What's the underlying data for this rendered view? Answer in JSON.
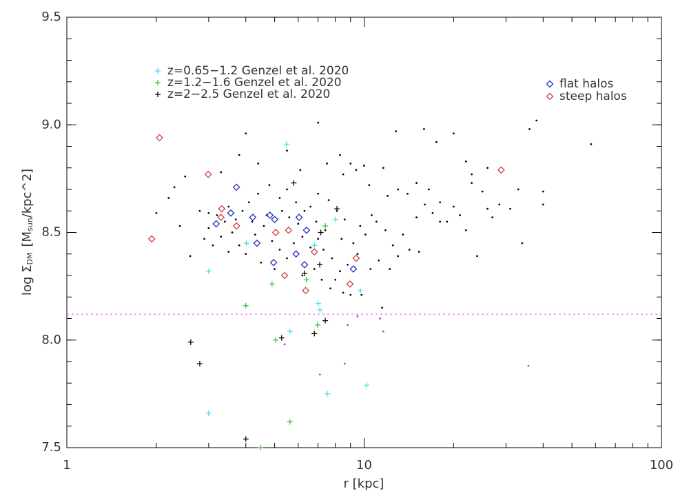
{
  "chart_data": {
    "type": "scatter",
    "xlabel": "r [kpc]",
    "ylabel": [
      "log Σ",
      "DM",
      "[M",
      "sun",
      "/kpc^2]"
    ],
    "xscale": "log",
    "xlim": [
      1,
      100
    ],
    "xticks": [
      1,
      10,
      100
    ],
    "ylim": [
      7.5,
      9.5
    ],
    "yticks": [
      7.5,
      {
        "value": 8.0,
        "label": "8.0"
      },
      8.5,
      {
        "value": 9.0,
        "label": "9.0"
      },
      9.5
    ],
    "hline": {
      "value": 8.12,
      "color": "#ff80ff"
    },
    "series": [
      {
        "name": "z=0.65−1.2 Genzel et al. 2020",
        "color": "#40e0f0",
        "marker": "cross",
        "x": [
          3.0,
          5.48,
          3.0,
          7.52,
          10.2,
          5.63,
          7.01,
          8.01,
          6.8,
          9.71,
          4.02,
          7.1
        ],
        "values": [
          8.32,
          8.91,
          7.66,
          7.75,
          7.79,
          8.04,
          8.17,
          8.56,
          8.44,
          8.23,
          8.45,
          8.14
        ]
      },
      {
        "name": "z=1.2−1.6 Genzel et al. 2020",
        "color": "#30c030",
        "marker": "cross",
        "x": [
          4.0,
          4.9,
          5.04,
          5.63,
          4.48,
          6.98,
          6.4,
          7.4
        ],
        "values": [
          8.16,
          8.26,
          8.0,
          7.62,
          7.5,
          8.07,
          8.28,
          8.53
        ]
      },
      {
        "name": "z=2−2.5 Genzel et al. 2020",
        "color": "#000000",
        "marker": "cross",
        "x": [
          2.61,
          2.8,
          4.0,
          5.28,
          6.8,
          7.4,
          7.09,
          6.3,
          8.1,
          5.8,
          7.15
        ],
        "values": [
          7.99,
          7.89,
          7.54,
          8.01,
          8.03,
          8.09,
          8.35,
          8.31,
          8.61,
          8.73,
          8.5
        ]
      },
      {
        "color": "#000000",
        "marker": "dot",
        "x": [
          7.0,
          12.8,
          15.9,
          20,
          38,
          36,
          58,
          17.5,
          4.0,
          5.5,
          3.8,
          8.3,
          10,
          9.0,
          11.6,
          22,
          26,
          23,
          23,
          33,
          40,
          40,
          31,
          26,
          2.3,
          2.2,
          2.5,
          3.3,
          4.4,
          6.1,
          7.5,
          8.5,
          9.4,
          10.4,
          12,
          13,
          14,
          15,
          16.5,
          18,
          20,
          22,
          24,
          34,
          18,
          17,
          16,
          15,
          13.5,
          12.5,
          14.2,
          15.3,
          13,
          11.8,
          11,
          10.6,
          10.1,
          9.7,
          9.2,
          9.5,
          8.8,
          8.3,
          8.0,
          7.8,
          7.3,
          8.4,
          8.6,
          8.1,
          7.6,
          7.0,
          6.6,
          6.9,
          6.3,
          5.9,
          5.5,
          5.2,
          4.8,
          4.4,
          4.1,
          3.9,
          3.5,
          3.2,
          3.0,
          2.9,
          3.1,
          3.3,
          3.6,
          3.8,
          4.0,
          4.3,
          4.6,
          4.9,
          5.2,
          5.5,
          5.8,
          6.2,
          6.6,
          7.0,
          7.4,
          6.0,
          5.6,
          5.3,
          4.7,
          4.2,
          3.7,
          3.4,
          3.0,
          2.8,
          2.6,
          3.5,
          4.5,
          5.0,
          6.2,
          6.8,
          7.2,
          7.7,
          8.5,
          9.0,
          9.8,
          11.5,
          10.5,
          11.2,
          12.2,
          19,
          21,
          25,
          28.5,
          27,
          2.0,
          2.4
        ],
        "values": [
          9.01,
          8.97,
          8.98,
          8.96,
          9.02,
          8.98,
          8.91,
          8.92,
          8.96,
          8.88,
          8.86,
          8.86,
          8.81,
          8.82,
          8.8,
          8.83,
          8.8,
          8.77,
          8.73,
          8.7,
          8.69,
          8.63,
          8.61,
          8.61,
          8.71,
          8.66,
          8.76,
          8.78,
          8.82,
          8.79,
          8.82,
          8.77,
          8.79,
          8.72,
          8.67,
          8.7,
          8.68,
          8.73,
          8.7,
          8.64,
          8.62,
          8.51,
          8.39,
          8.45,
          8.55,
          8.59,
          8.63,
          8.57,
          8.49,
          8.44,
          8.42,
          8.41,
          8.39,
          8.51,
          8.55,
          8.58,
          8.49,
          8.53,
          8.45,
          8.4,
          8.35,
          8.32,
          8.28,
          8.38,
          8.42,
          8.47,
          8.56,
          8.6,
          8.65,
          8.68,
          8.62,
          8.55,
          8.6,
          8.64,
          8.7,
          8.66,
          8.72,
          8.68,
          8.64,
          8.6,
          8.62,
          8.58,
          8.52,
          8.47,
          8.44,
          8.48,
          8.5,
          8.44,
          8.4,
          8.49,
          8.53,
          8.46,
          8.42,
          8.38,
          8.45,
          8.48,
          8.43,
          8.47,
          8.51,
          8.54,
          8.57,
          8.6,
          8.58,
          8.55,
          8.56,
          8.55,
          8.59,
          8.6,
          8.39,
          8.41,
          8.36,
          8.33,
          8.3,
          8.33,
          8.28,
          8.24,
          8.22,
          8.21,
          8.21,
          8.15,
          8.33,
          8.37,
          8.33,
          8.55,
          8.58,
          8.69,
          8.63,
          8.57,
          8.59,
          8.53
        ]
      },
      {
        "color": "#e020e0",
        "marker": "dot",
        "x": [
          11.3,
          9.5,
          11.6,
          8.6,
          7.1,
          35.7,
          5.4,
          8.8
        ],
        "values": [
          8.1,
          8.11,
          8.04,
          7.89,
          7.84,
          7.88,
          7.98,
          8.07
        ]
      },
      {
        "name": "flat halos",
        "color": "#2030c0",
        "marker": "diamond",
        "x": [
          3.18,
          3.72,
          3.56,
          4.22,
          4.36,
          4.82,
          5.0,
          6.04,
          4.96,
          5.9,
          6.4,
          6.3,
          9.2
        ],
        "values": [
          8.54,
          8.71,
          8.59,
          8.57,
          8.45,
          8.58,
          8.56,
          8.57,
          8.36,
          8.4,
          8.51,
          8.35,
          8.33
        ]
      },
      {
        "name": "steep halos",
        "color": "#d04040",
        "marker": "diamond",
        "x": [
          2.05,
          1.93,
          2.99,
          3.32,
          3.3,
          3.72,
          5.04,
          5.57,
          5.4,
          6.36,
          6.8,
          9.4,
          8.96,
          28.9
        ],
        "values": [
          8.94,
          8.47,
          8.77,
          8.61,
          8.57,
          8.53,
          8.5,
          8.51,
          8.3,
          8.23,
          8.41,
          8.38,
          8.26,
          8.79
        ]
      }
    ]
  }
}
